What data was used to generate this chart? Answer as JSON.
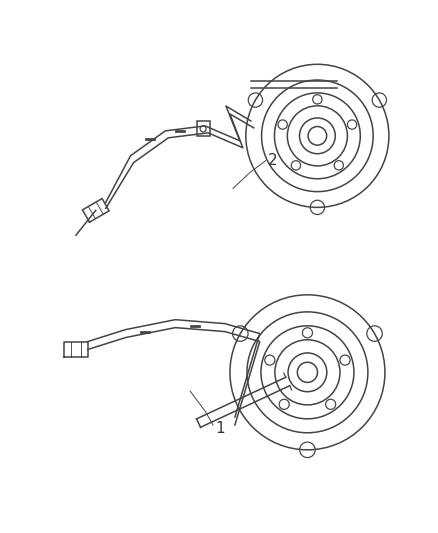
{
  "background_color": "#ffffff",
  "line_color": "#444444",
  "label_color": "#333333",
  "fig_width": 4.38,
  "fig_height": 5.33,
  "dpi": 100,
  "label1": "1",
  "label2": "2"
}
